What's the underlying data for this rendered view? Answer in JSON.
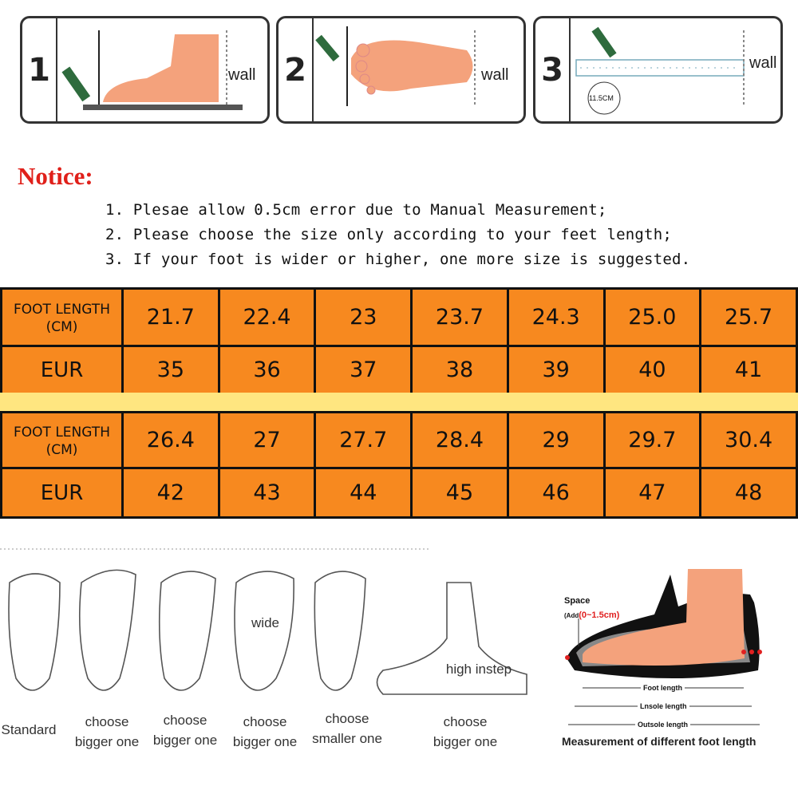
{
  "steps": [
    {
      "number": "1",
      "label": "wall"
    },
    {
      "number": "2",
      "label": "wall"
    },
    {
      "number": "3",
      "label": "wall",
      "badge": "11.5CM"
    }
  ],
  "notice": {
    "title": "Notice:",
    "items": [
      "1. Plesae allow 0.5cm error due to Manual Measurement;",
      "2. Please choose the size only according to your feet length;",
      "3. If your foot is wider or higher, one more size is suggested."
    ]
  },
  "size_table": {
    "foot_label_1": "FOOT LENGTH",
    "foot_label_2": "(CM)",
    "eur_label": "EUR",
    "blocks": [
      {
        "foot": [
          "21.7",
          "22.4",
          "23",
          "23.7",
          "24.3",
          "25.0",
          "25.7"
        ],
        "eur": [
          "35",
          "36",
          "37",
          "38",
          "39",
          "40",
          "41"
        ]
      },
      {
        "foot": [
          "26.4",
          "27",
          "27.7",
          "28.4",
          "29",
          "29.7",
          "30.4"
        ],
        "eur": [
          "42",
          "43",
          "44",
          "45",
          "46",
          "47",
          "48"
        ]
      }
    ],
    "colors": {
      "cell": "#f7891f",
      "separator": "#ffe680"
    }
  },
  "foot_types": {
    "standard": "Standard",
    "c1": [
      "choose",
      "bigger one"
    ],
    "c2": [
      "choose",
      "bigger one"
    ],
    "c3": [
      "choose",
      "bigger one"
    ],
    "c4": [
      "choose",
      "smaller one"
    ],
    "c5": [
      "choose",
      "bigger one"
    ],
    "wide": "wide",
    "high_instep": "high instep"
  },
  "measure": {
    "space": "Space",
    "add_prefix": "(Add",
    "add_range": "(0~1.5cm)",
    "foot_length": "Foot length",
    "insole_length": "Lnsole length",
    "outsole_length": "Outsole length",
    "caption": "Measurement of different foot length"
  }
}
